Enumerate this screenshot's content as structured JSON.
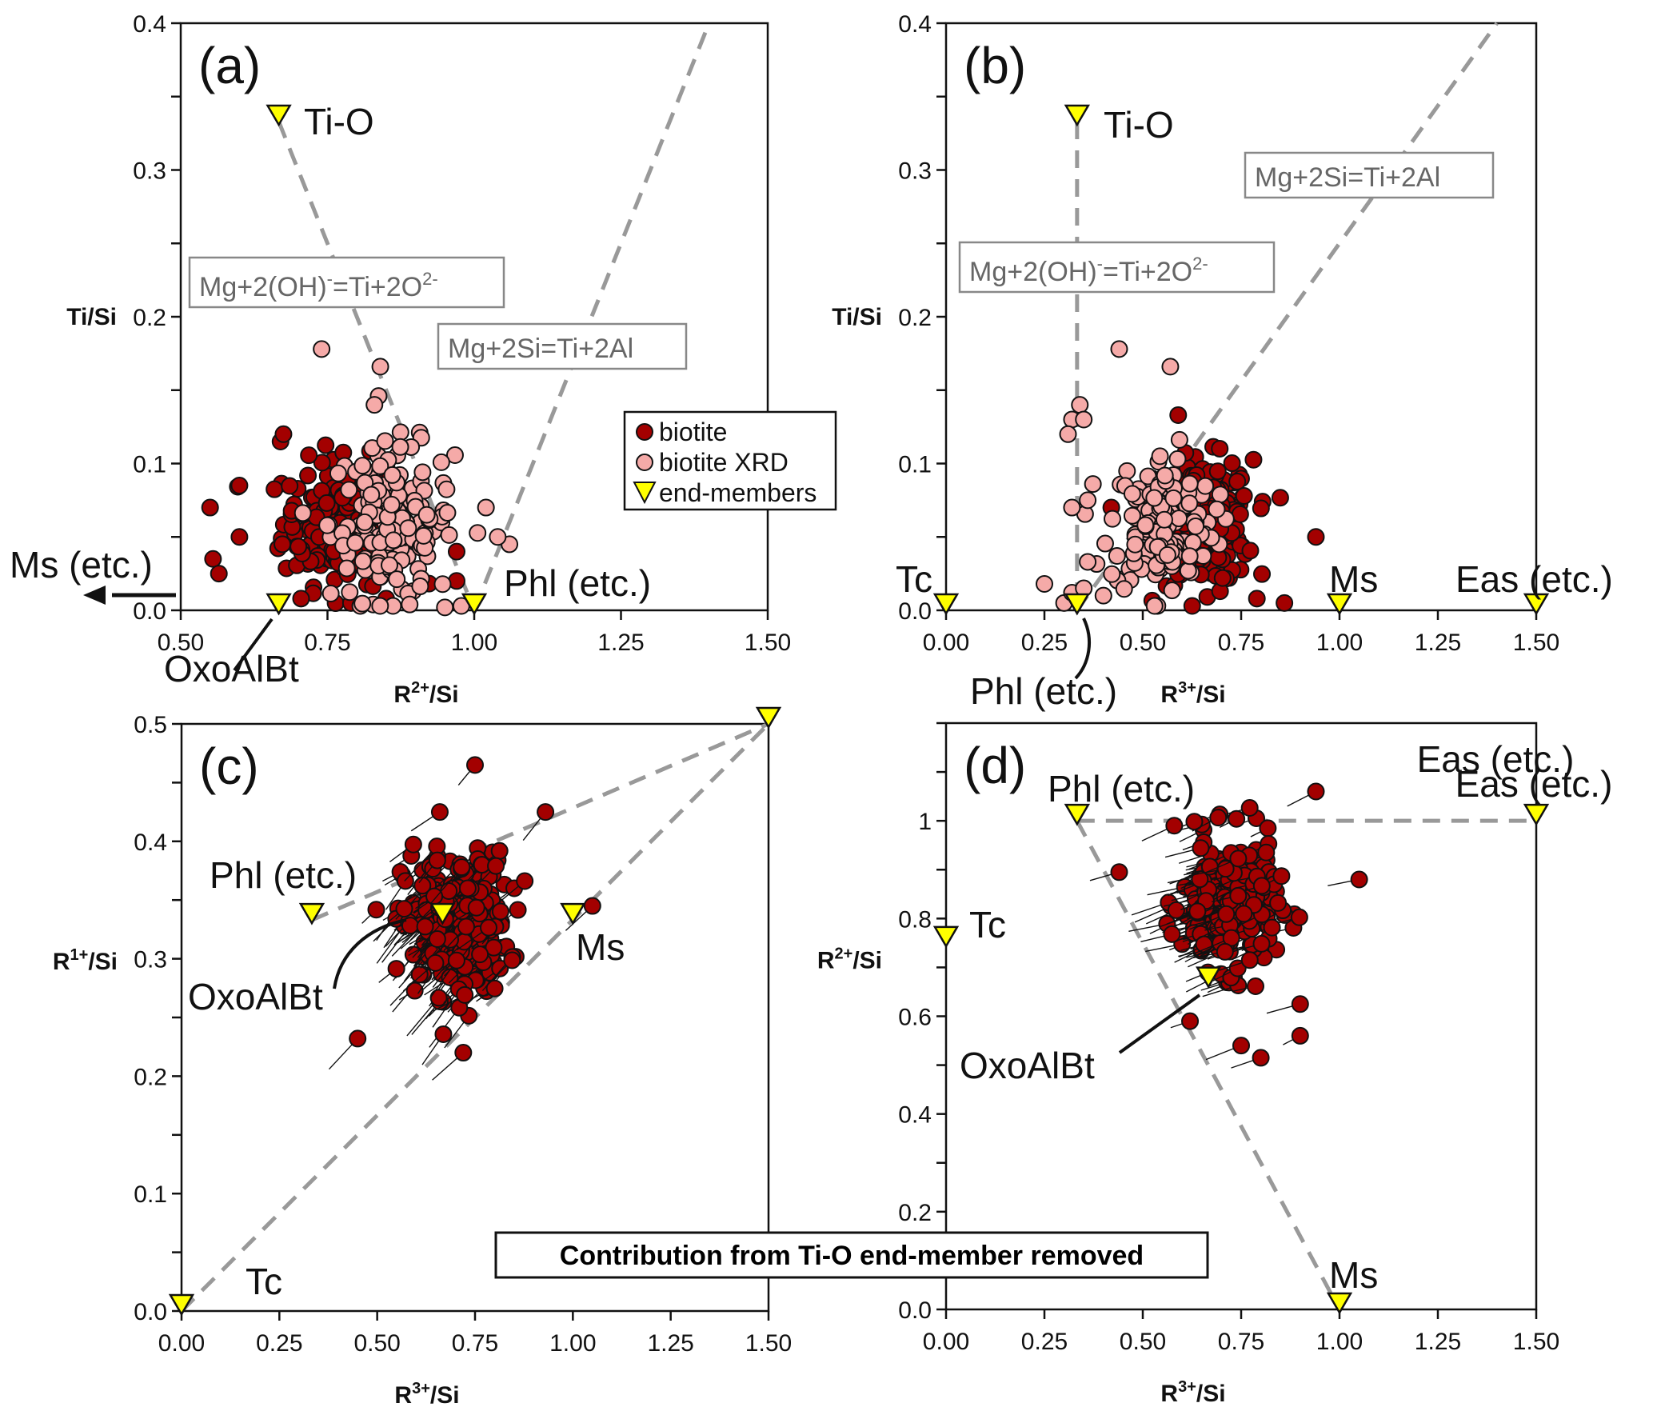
{
  "figure": {
    "banner": "Contribution from Ti-O end-member removed",
    "legend": {
      "items": [
        {
          "label": "biotite",
          "marker": "circle",
          "color": "#a30000"
        },
        {
          "label": "biotite XRD",
          "marker": "circle",
          "color": "#f5aaa8"
        },
        {
          "label": "end-members",
          "marker": "triangle-down",
          "color": "#ffff00"
        }
      ]
    },
    "colors": {
      "biotite": "#a30000",
      "biotite_xrd": "#f5aaa8",
      "end_member": "#ffff00",
      "dashed_line": "#999999",
      "equation_text": "#666666"
    }
  },
  "chart_data": [
    {
      "id": "a",
      "type": "scatter",
      "tag": "(a)",
      "xlabel": "R2+/Si",
      "xlabel_base": "R",
      "xlabel_sup": "2+",
      "xlabel_rest": "/Si",
      "ylabel": "Ti/Si",
      "xlim": [
        0.5,
        1.5
      ],
      "ylim": [
        0.0,
        0.4
      ],
      "xticks": [
        0.5,
        0.75,
        1.0,
        1.25,
        1.5
      ],
      "xtick_labels": [
        "0.50",
        "0.75",
        "1.00",
        "1.25",
        "1.50"
      ],
      "yticks": [
        0.0,
        0.1,
        0.2,
        0.3,
        0.4
      ],
      "ytick_labels": [
        "0.0",
        "0.1",
        "0.2",
        "0.3",
        "0.4"
      ],
      "end_members": [
        {
          "name": "Ti-O",
          "x": 0.667,
          "y": 0.333
        },
        {
          "name": "OxoAlBt",
          "x": 0.667,
          "y": 0.0
        },
        {
          "name": "Phl (etc.)",
          "x": 1.0,
          "y": 0.0
        }
      ],
      "annotations": [
        {
          "text": "Ms (etc.)",
          "note": "arrow pointing left, off-axis"
        },
        {
          "text": "Mg+2(OH)-=Ti+2O2-",
          "boxed": true
        },
        {
          "text": "Mg+2Si=Ti+2Al",
          "boxed": true
        }
      ],
      "lines": [
        {
          "from": [
            0.667,
            0.333
          ],
          "to": [
            1.0,
            0.0
          ],
          "style": "dashed"
        },
        {
          "from": [
            1.0,
            0.0
          ],
          "to": [
            1.4,
            0.4
          ],
          "style": "dashed"
        }
      ],
      "series": [
        {
          "name": "biotite",
          "center": [
            0.78,
            0.06
          ],
          "spread": [
            0.07,
            0.028
          ],
          "n": 220,
          "outliers": [
            [
              0.55,
              0.07
            ],
            [
              0.555,
              0.035
            ],
            [
              0.565,
              0.025
            ],
            [
              0.6,
              0.085
            ],
            [
              0.6,
              0.05
            ],
            [
              0.67,
              0.115
            ],
            [
              0.675,
              0.12
            ],
            [
              0.705,
              0.008
            ],
            [
              0.79,
              0.005
            ],
            [
              0.85,
              0.008
            ],
            [
              0.97,
              0.04
            ],
            [
              0.97,
              0.02
            ]
          ]
        },
        {
          "name": "biotite XRD",
          "center": [
            0.86,
            0.06
          ],
          "spread": [
            0.07,
            0.035
          ],
          "n": 170,
          "outliers": [
            [
              0.74,
              0.178
            ],
            [
              0.84,
              0.166
            ],
            [
              0.83,
              0.14
            ],
            [
              1.06,
              0.045
            ],
            [
              1.04,
              0.05
            ],
            [
              1.02,
              0.07
            ],
            [
              0.89,
              0.004
            ],
            [
              0.95,
              0.002
            ]
          ]
        }
      ]
    },
    {
      "id": "b",
      "type": "scatter",
      "tag": "(b)",
      "xlabel": "R3+/Si",
      "xlabel_base": "R",
      "xlabel_sup": "3+",
      "xlabel_rest": "/Si",
      "ylabel": "Ti/Si",
      "xlim": [
        0.0,
        1.5
      ],
      "ylim": [
        0.0,
        0.4
      ],
      "xticks": [
        0.0,
        0.25,
        0.5,
        0.75,
        1.0,
        1.25,
        1.5
      ],
      "xtick_labels": [
        "0.00",
        "0.25",
        "0.50",
        "0.75",
        "1.00",
        "1.25",
        "1.50"
      ],
      "yticks": [
        0.0,
        0.1,
        0.2,
        0.3,
        0.4
      ],
      "ytick_labels": [
        "0.0",
        "0.1",
        "0.2",
        "0.3",
        "0.4"
      ],
      "end_members": [
        {
          "name": "Ti-O",
          "x": 0.333,
          "y": 0.333
        },
        {
          "name": "Tc",
          "x": 0.0,
          "y": 0.0
        },
        {
          "name": "Phl (etc.)",
          "x": 0.333,
          "y": 0.0
        },
        {
          "name": "Ms",
          "x": 1.0,
          "y": 0.0
        },
        {
          "name": "Eas (etc.)",
          "x": 1.5,
          "y": 0.0
        }
      ],
      "annotations": [
        {
          "text": "Mg+2(OH)-=Ti+2O2-",
          "boxed": true
        },
        {
          "text": "Mg+2Si=Ti+2Al",
          "boxed": true
        }
      ],
      "lines": [
        {
          "from": [
            0.333,
            0.333
          ],
          "to": [
            0.333,
            0.0
          ],
          "style": "dashed"
        },
        {
          "from": [
            0.333,
            0.0
          ],
          "to": [
            1.4,
            0.4
          ],
          "style": "dashed"
        }
      ],
      "series": [
        {
          "name": "biotite",
          "center": [
            0.66,
            0.06
          ],
          "spread": [
            0.08,
            0.028
          ],
          "n": 220,
          "outliers": [
            [
              0.94,
              0.05
            ],
            [
              0.86,
              0.005
            ],
            [
              0.79,
              0.008
            ],
            [
              0.59,
              0.133
            ],
            [
              0.42,
              0.07
            ]
          ]
        },
        {
          "name": "biotite XRD",
          "center": [
            0.55,
            0.06
          ],
          "spread": [
            0.09,
            0.032
          ],
          "n": 150,
          "outliers": [
            [
              0.44,
              0.178
            ],
            [
              0.57,
              0.166
            ],
            [
              0.32,
              0.13
            ],
            [
              0.31,
              0.12
            ],
            [
              0.34,
              0.14
            ],
            [
              0.35,
              0.13
            ],
            [
              0.32,
              0.07
            ],
            [
              0.36,
              0.075
            ],
            [
              0.25,
              0.018
            ],
            [
              0.3,
              0.005
            ],
            [
              0.32,
              0.012
            ],
            [
              0.35,
              0.015
            ],
            [
              0.4,
              0.01
            ],
            [
              0.53,
              0.003
            ],
            [
              0.36,
              0.033
            ]
          ]
        }
      ]
    },
    {
      "id": "c",
      "type": "scatter",
      "tag": "(c)",
      "xlabel": "R3+/Si",
      "xlabel_base": "R",
      "xlabel_sup": "3+",
      "xlabel_rest": "/Si",
      "ylabel": "R1+/Si",
      "ylabel_base": "R",
      "ylabel_sup": "1+",
      "ylabel_rest": "/Si",
      "xlim": [
        0.0,
        1.5
      ],
      "ylim": [
        0.0,
        0.5
      ],
      "xticks": [
        0.0,
        0.25,
        0.5,
        0.75,
        1.0,
        1.25,
        1.5
      ],
      "xtick_labels": [
        "0.00",
        "0.25",
        "0.50",
        "0.75",
        "1.00",
        "1.25",
        "1.50"
      ],
      "yticks": [
        0.0,
        0.1,
        0.2,
        0.3,
        0.4,
        0.5
      ],
      "ytick_labels": [
        "0.0",
        "0.1",
        "0.2",
        "0.3",
        "0.4",
        "0.5"
      ],
      "end_members": [
        {
          "name": "Tc",
          "x": 0.0,
          "y": 0.0
        },
        {
          "name": "Phl (etc.)",
          "x": 0.333,
          "y": 0.333
        },
        {
          "name": "OxoAlBt",
          "x": 0.667,
          "y": 0.333
        },
        {
          "name": "Ms",
          "x": 1.0,
          "y": 0.333
        },
        {
          "name": "Eas (etc.)",
          "x": 1.5,
          "y": 0.5
        }
      ],
      "lines": [
        {
          "from": [
            0.333,
            0.333
          ],
          "to": [
            1.5,
            0.5
          ],
          "style": "dashed"
        },
        {
          "from": [
            0.0,
            0.0
          ],
          "to": [
            1.5,
            0.5
          ],
          "style": "dashed"
        }
      ],
      "series": [
        {
          "name": "biotite",
          "center": [
            0.7,
            0.33
          ],
          "spread": [
            0.09,
            0.04
          ],
          "n": 260,
          "tail": [
            -0.06,
            -0.02
          ],
          "outliers": [
            [
              0.75,
              0.465
            ],
            [
              0.66,
              0.425
            ],
            [
              0.45,
              0.232
            ],
            [
              0.72,
              0.22
            ],
            [
              1.05,
              0.345
            ],
            [
              0.93,
              0.425
            ]
          ]
        }
      ]
    },
    {
      "id": "d",
      "type": "scatter",
      "tag": "(d)",
      "xlabel": "R3+/Si",
      "xlabel_base": "R",
      "xlabel_sup": "3+",
      "xlabel_rest": "/Si",
      "ylabel": "R2+/Si",
      "ylabel_base": "R",
      "ylabel_sup": "2+",
      "ylabel_rest": "/Si",
      "xlim": [
        0.0,
        1.5
      ],
      "ylim": [
        0.0,
        1.2
      ],
      "xticks": [
        0.0,
        0.25,
        0.5,
        0.75,
        1.0,
        1.25,
        1.5
      ],
      "xtick_labels": [
        "0.00",
        "0.25",
        "0.50",
        "0.75",
        "1.00",
        "1.25",
        "1.50"
      ],
      "yticks": [
        0.0,
        0.2,
        0.4,
        0.6,
        0.8,
        1.0
      ],
      "ytick_labels": [
        "0.0",
        "0.2",
        "0.4",
        "0.6",
        "0.8",
        "1"
      ],
      "end_members": [
        {
          "name": "Tc",
          "x": 0.0,
          "y": 0.75
        },
        {
          "name": "Phl (etc.)",
          "x": 0.333,
          "y": 1.0
        },
        {
          "name": "OxoAlBt",
          "x": 0.667,
          "y": 0.667
        },
        {
          "name": "Ms",
          "x": 1.0,
          "y": 0.0
        },
        {
          "name": "Eas (etc.)",
          "x": 1.5,
          "y": 1.0
        }
      ],
      "lines": [
        {
          "from": [
            0.333,
            1.0
          ],
          "to": [
            1.5,
            1.0
          ],
          "style": "dashed"
        },
        {
          "from": [
            0.333,
            1.0
          ],
          "to": [
            1.0,
            0.0
          ],
          "style": "dashed"
        }
      ],
      "series": [
        {
          "name": "biotite",
          "center": [
            0.72,
            0.83
          ],
          "spread": [
            0.08,
            0.09
          ],
          "n": 260,
          "tail": [
            -0.07,
            -0.02
          ],
          "outliers": [
            [
              0.94,
              1.06
            ],
            [
              1.05,
              0.88
            ],
            [
              0.44,
              0.895
            ],
            [
              0.58,
              0.99
            ],
            [
              0.62,
              0.59
            ],
            [
              0.8,
              0.515
            ],
            [
              0.9,
              0.56
            ],
            [
              0.75,
              0.54
            ],
            [
              0.9,
              0.625
            ]
          ]
        }
      ]
    }
  ]
}
